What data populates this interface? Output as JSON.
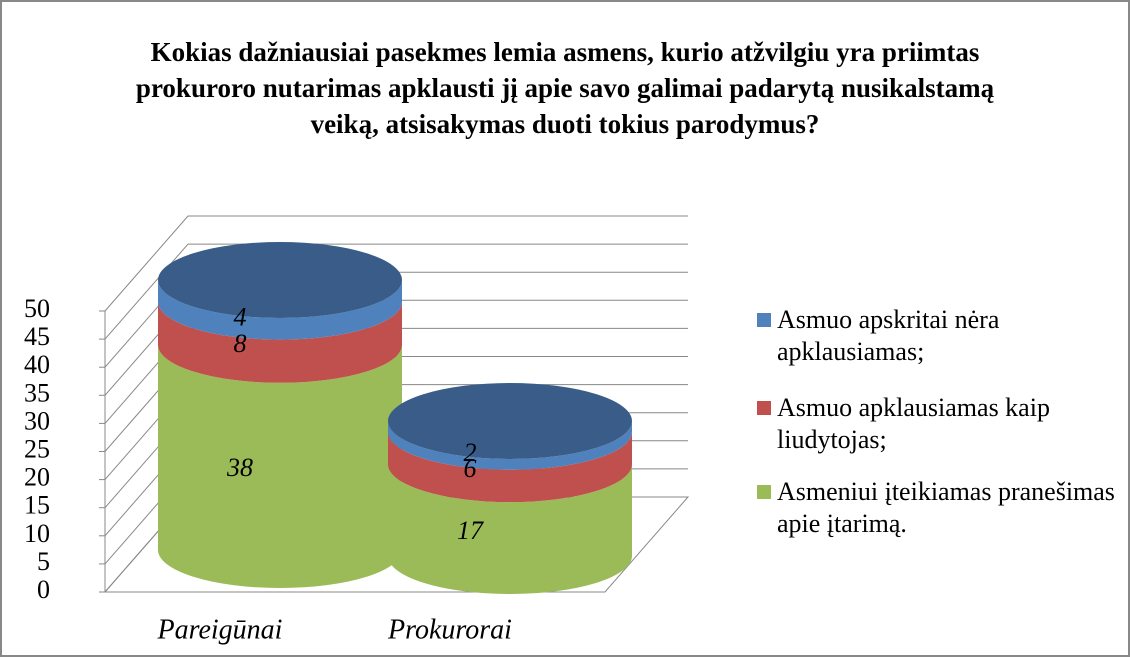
{
  "chart_data": {
    "type": "bar",
    "stacked": true,
    "title": "Kokias dažniausiai pasekmes lemia asmens, kurio atžvilgiu yra priimtas prokuroro nutarimas apklausti jį apie savo galimai padarytą nusikalstamą veiką, atsisakymas duoti tokius parodymus?",
    "categories": [
      "Pareigūnai",
      "Prokurorai"
    ],
    "series": [
      {
        "name": "Asmeniui įteikiamas pranešimas apie įtarimą.",
        "color": "#9bbb59",
        "values": [
          38,
          17
        ]
      },
      {
        "name": "Asmuo apklausiamas kaip liudytojas;",
        "color": "#c0504d",
        "values": [
          8,
          6
        ]
      },
      {
        "name": "Asmuo apskritai nėra apklausiamas;",
        "color": "#4f81bd",
        "values": [
          4,
          2
        ]
      }
    ],
    "ylim": [
      0,
      50
    ],
    "yticks": [
      0,
      5,
      10,
      15,
      20,
      25,
      30,
      35,
      40,
      45,
      50
    ],
    "grid": true,
    "legend": "right"
  }
}
